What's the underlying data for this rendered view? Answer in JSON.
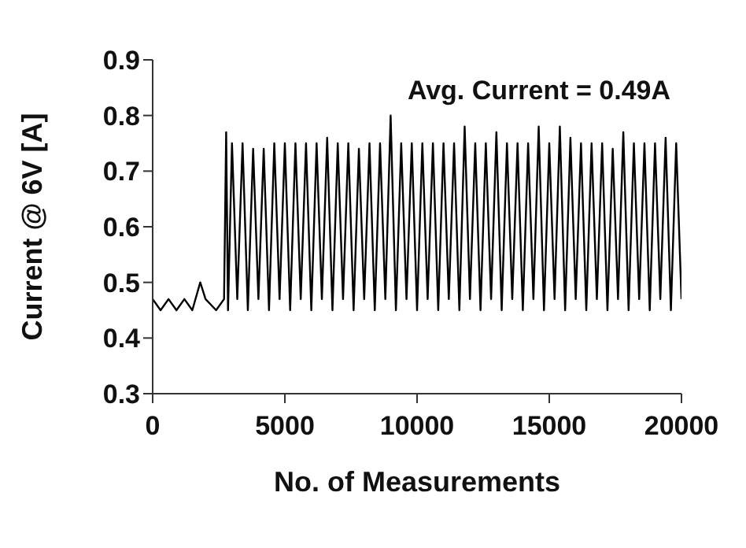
{
  "chart_data": {
    "type": "line",
    "xlabel": "No. of Measurements",
    "ylabel": "Current @ 6V [A]",
    "annotations": [
      "Avg. Current = 0.49A"
    ],
    "x": [
      0,
      300,
      600,
      900,
      1200,
      1500,
      1800,
      2000,
      2400,
      2700,
      2780,
      2850,
      3000,
      3200,
      3400,
      3600,
      3800,
      4000,
      4200,
      4400,
      4600,
      4800,
      5000,
      5200,
      5400,
      5600,
      5800,
      6000,
      6200,
      6400,
      6600,
      6800,
      7000,
      7200,
      7400,
      7600,
      7800,
      8000,
      8200,
      8400,
      8600,
      8800,
      9000,
      9200,
      9400,
      9600,
      9800,
      10000,
      10200,
      10400,
      10600,
      10800,
      11000,
      11200,
      11400,
      11600,
      11800,
      12000,
      12200,
      12400,
      12600,
      12800,
      13000,
      13200,
      13400,
      13600,
      13800,
      14000,
      14200,
      14400,
      14600,
      14800,
      15000,
      15200,
      15400,
      15600,
      15800,
      16000,
      16200,
      16400,
      16600,
      16800,
      17000,
      17200,
      17400,
      17600,
      17800,
      18000,
      18200,
      18400,
      18600,
      18800,
      19000,
      19200,
      19400,
      19600,
      19800,
      20000
    ],
    "series": [
      {
        "color": "#000000",
        "values": [
          0.47,
          0.45,
          0.47,
          0.45,
          0.47,
          0.45,
          0.5,
          0.47,
          0.45,
          0.47,
          0.77,
          0.45,
          0.75,
          0.47,
          0.75,
          0.45,
          0.74,
          0.47,
          0.74,
          0.45,
          0.75,
          0.47,
          0.75,
          0.45,
          0.75,
          0.47,
          0.75,
          0.45,
          0.75,
          0.47,
          0.76,
          0.45,
          0.75,
          0.47,
          0.75,
          0.45,
          0.74,
          0.47,
          0.75,
          0.45,
          0.75,
          0.47,
          0.8,
          0.45,
          0.75,
          0.47,
          0.75,
          0.45,
          0.75,
          0.47,
          0.75,
          0.45,
          0.75,
          0.47,
          0.75,
          0.45,
          0.78,
          0.47,
          0.75,
          0.45,
          0.75,
          0.47,
          0.77,
          0.45,
          0.75,
          0.47,
          0.75,
          0.45,
          0.75,
          0.47,
          0.78,
          0.45,
          0.75,
          0.47,
          0.78,
          0.45,
          0.76,
          0.47,
          0.75,
          0.45,
          0.75,
          0.47,
          0.75,
          0.45,
          0.74,
          0.47,
          0.77,
          0.45,
          0.75,
          0.47,
          0.75,
          0.45,
          0.75,
          0.47,
          0.76,
          0.45,
          0.75,
          0.47
        ]
      }
    ],
    "xlim": [
      0,
      20000
    ],
    "xticks": [
      0,
      5000,
      10000,
      15000,
      20000
    ],
    "ylim": [
      0.3,
      0.9
    ],
    "yticks": [
      0.3,
      0.4,
      0.5,
      0.6,
      0.7,
      0.8,
      0.9
    ],
    "grid": false,
    "legend": false,
    "marker": "none",
    "line_style": "solid"
  }
}
